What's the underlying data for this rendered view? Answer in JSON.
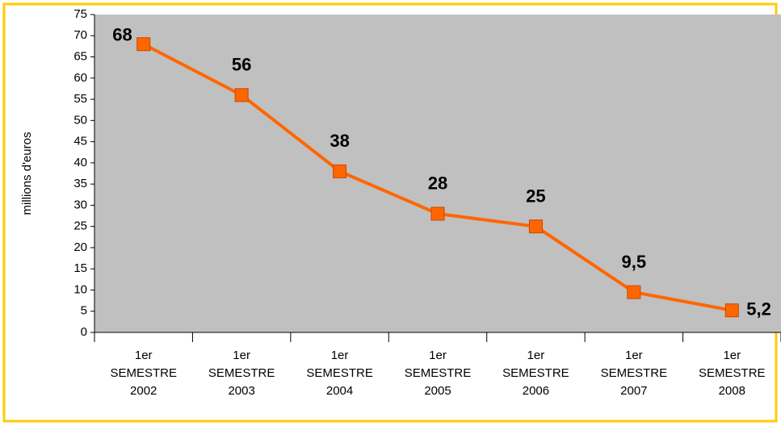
{
  "chart_data": {
    "type": "line",
    "y_label": "millions d'euros",
    "categories": [
      [
        "1er",
        "SEMESTRE",
        "2002"
      ],
      [
        "1er",
        "SEMESTRE",
        "2003"
      ],
      [
        "1er",
        "SEMESTRE",
        "2004"
      ],
      [
        "1er",
        "SEMESTRE",
        "2005"
      ],
      [
        "1er",
        "SEMESTRE",
        "2006"
      ],
      [
        "1er",
        "SEMESTRE",
        "2007"
      ],
      [
        "1er",
        "SEMESTRE",
        "2008"
      ]
    ],
    "values": [
      68,
      56,
      38,
      28,
      25,
      9.5,
      5.2
    ],
    "value_labels": [
      "68",
      "56",
      "38",
      "28",
      "25",
      "9,5",
      "5,2"
    ],
    "color": "#ff6600",
    "ylim": [
      0,
      75
    ],
    "yticks": [
      0,
      5,
      10,
      15,
      20,
      25,
      30,
      35,
      40,
      45,
      50,
      55,
      60,
      65,
      70,
      75
    ]
  }
}
